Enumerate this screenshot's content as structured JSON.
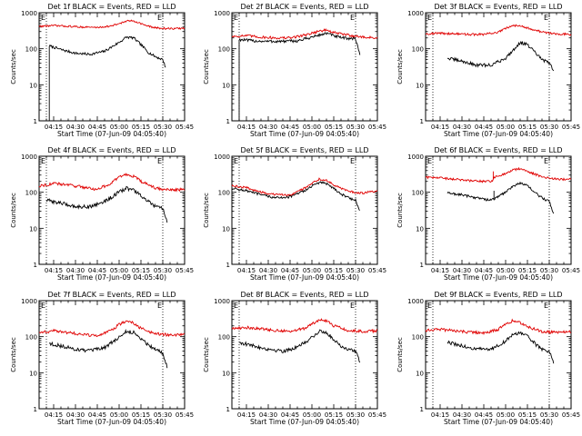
{
  "colors": {
    "events": "#000000",
    "lld": "#e00000",
    "axis": "#000000"
  },
  "chart_data": [
    {
      "type": "line",
      "title": "Det 1f BLACK = Events, RED = LLD",
      "xlabel": "Start Time (07-Jun-09 04:05:40)",
      "ylabel": "Counts/sec",
      "yscale": "log",
      "ylim": [
        1,
        1000
      ],
      "ytick_labels": [
        "1",
        "10",
        "100",
        "1000"
      ],
      "x_range_min": [
        0,
        100
      ],
      "xtick_min": [
        10,
        25,
        40,
        55,
        70,
        85,
        100
      ],
      "xtick_labels": [
        "04:15",
        "04:30",
        "04:45",
        "05:00",
        "05:15",
        "05:30",
        "05:45"
      ],
      "markers": [
        {
          "x": 5,
          "label": "E"
        },
        {
          "x": 85,
          "label": "E"
        }
      ],
      "series": [
        {
          "name": "Events",
          "color": "#000000",
          "start": 7,
          "end": 87,
          "x": [
            7,
            15,
            25,
            35,
            45,
            55,
            60,
            65,
            70,
            75,
            80,
            85,
            87
          ],
          "y": [
            120,
            95,
            75,
            70,
            85,
            150,
            210,
            200,
            130,
            80,
            60,
            50,
            30
          ],
          "drop": 1,
          "noise": 0.035
        },
        {
          "name": "LLD",
          "color": "#e00000",
          "start": 0,
          "end": 100,
          "x": [
            0,
            10,
            20,
            30,
            40,
            50,
            55,
            60,
            65,
            70,
            75,
            80,
            90,
            100
          ],
          "y": [
            420,
            440,
            420,
            400,
            390,
            430,
            500,
            580,
            600,
            500,
            420,
            380,
            360,
            370
          ],
          "noise": 0.025
        }
      ]
    },
    {
      "type": "line",
      "title": "Det 2f BLACK = Events, RED = LLD",
      "xlabel": "Start Time (07-Jun-09 04:05:40)",
      "ylabel": "Counts/sec",
      "yscale": "log",
      "ylim": [
        1,
        1000
      ],
      "ytick_labels": [
        "1",
        "10",
        "100",
        "1000"
      ],
      "x_range_min": [
        0,
        100
      ],
      "xtick_min": [
        10,
        25,
        40,
        55,
        70,
        85,
        100
      ],
      "xtick_labels": [
        "04:15",
        "04:30",
        "04:45",
        "05:00",
        "05:15",
        "05:30",
        "05:45"
      ],
      "markers": [
        {
          "x": 5,
          "label": "E"
        },
        {
          "x": 85,
          "label": "E"
        }
      ],
      "series": [
        {
          "name": "Events",
          "color": "#000000",
          "start": 5,
          "end": 88,
          "x": [
            5,
            15,
            25,
            35,
            45,
            55,
            65,
            70,
            75,
            80,
            85,
            88
          ],
          "y": [
            180,
            165,
            160,
            160,
            165,
            210,
            270,
            230,
            200,
            195,
            190,
            70
          ],
          "drop": 1,
          "noise": 0.04
        },
        {
          "name": "LLD",
          "color": "#e00000",
          "start": 0,
          "end": 100,
          "x": [
            0,
            10,
            20,
            30,
            40,
            50,
            60,
            65,
            70,
            80,
            90,
            100
          ],
          "y": [
            220,
            230,
            210,
            200,
            200,
            240,
            310,
            330,
            280,
            240,
            210,
            200
          ],
          "noise": 0.035
        }
      ]
    },
    {
      "type": "line",
      "title": "Det 3f BLACK = Events, RED = LLD",
      "xlabel": "Start Time (07-Jun-09 04:05:40)",
      "ylabel": "Counts/sec",
      "yscale": "log",
      "ylim": [
        1,
        1000
      ],
      "ytick_labels": [
        "1",
        "10",
        "100",
        "1000"
      ],
      "x_range_min": [
        0,
        100
      ],
      "xtick_min": [
        10,
        25,
        40,
        55,
        70,
        85,
        100
      ],
      "xtick_labels": [
        "04:15",
        "04:30",
        "04:45",
        "05:00",
        "05:15",
        "05:30",
        "05:45"
      ],
      "markers": [
        {
          "x": 5,
          "label": "E"
        },
        {
          "x": 85,
          "label": "E"
        }
      ],
      "series": [
        {
          "name": "Events",
          "color": "#000000",
          "start": 15,
          "end": 88,
          "x": [
            15,
            25,
            35,
            45,
            55,
            60,
            65,
            70,
            75,
            80,
            85,
            88
          ],
          "y": [
            55,
            45,
            35,
            35,
            55,
            90,
            150,
            130,
            80,
            50,
            40,
            25
          ],
          "noise": 0.045
        },
        {
          "name": "LLD",
          "color": "#e00000",
          "start": 0,
          "end": 100,
          "x": [
            0,
            10,
            20,
            30,
            40,
            50,
            55,
            60,
            65,
            70,
            80,
            90,
            100
          ],
          "y": [
            260,
            270,
            260,
            250,
            250,
            290,
            360,
            440,
            450,
            380,
            290,
            260,
            250
          ],
          "noise": 0.03
        }
      ]
    },
    {
      "type": "line",
      "title": "Det 4f BLACK = Events, RED = LLD",
      "xlabel": "Start Time (07-Jun-09 04:05:40)",
      "ylabel": "Counts/sec",
      "yscale": "log",
      "ylim": [
        1,
        1000
      ],
      "ytick_labels": [
        "1",
        "10",
        "100",
        "1000"
      ],
      "x_range_min": [
        0,
        100
      ],
      "xtick_min": [
        10,
        25,
        40,
        55,
        70,
        85,
        100
      ],
      "xtick_labels": [
        "04:15",
        "04:30",
        "04:45",
        "05:00",
        "05:15",
        "05:30",
        "05:45"
      ],
      "markers": [
        {
          "x": 5,
          "label": "E"
        },
        {
          "x": 85,
          "label": "E"
        }
      ],
      "series": [
        {
          "name": "Events",
          "color": "#000000",
          "start": 5,
          "end": 88,
          "x": [
            5,
            15,
            25,
            35,
            45,
            55,
            60,
            65,
            70,
            75,
            80,
            85,
            88
          ],
          "y": [
            60,
            50,
            40,
            40,
            55,
            100,
            130,
            115,
            80,
            55,
            40,
            35,
            15
          ],
          "noise": 0.05
        },
        {
          "name": "LLD",
          "color": "#e00000",
          "start": 0,
          "end": 100,
          "x": [
            0,
            10,
            20,
            30,
            40,
            50,
            55,
            60,
            65,
            70,
            80,
            90,
            100
          ],
          "y": [
            150,
            175,
            160,
            140,
            120,
            180,
            270,
            310,
            280,
            200,
            130,
            115,
            120
          ],
          "noise": 0.04
        }
      ]
    },
    {
      "type": "line",
      "title": "Det 5f BLACK = Events, RED = LLD",
      "xlabel": "Start Time (07-Jun-09 04:05:40)",
      "ylabel": "Counts/sec",
      "yscale": "log",
      "ylim": [
        1,
        1000
      ],
      "ytick_labels": [
        "1",
        "10",
        "100",
        "1000"
      ],
      "x_range_min": [
        0,
        100
      ],
      "xtick_min": [
        10,
        25,
        40,
        55,
        70,
        85,
        100
      ],
      "xtick_labels": [
        "04:15",
        "04:30",
        "04:45",
        "05:00",
        "05:15",
        "05:30",
        "05:45"
      ],
      "markers": [
        {
          "x": 5,
          "label": "E"
        },
        {
          "x": 85,
          "label": "E"
        }
      ],
      "series": [
        {
          "name": "Events",
          "color": "#000000",
          "start": 0,
          "end": 88,
          "x": [
            0,
            10,
            20,
            30,
            40,
            50,
            55,
            60,
            65,
            70,
            75,
            80,
            85,
            88
          ],
          "y": [
            130,
            110,
            85,
            70,
            75,
            110,
            150,
            185,
            175,
            130,
            90,
            70,
            60,
            30
          ],
          "noise": 0.035
        },
        {
          "name": "LLD",
          "color": "#e00000",
          "start": 0,
          "end": 100,
          "x": [
            0,
            10,
            20,
            30,
            40,
            50,
            55,
            60,
            65,
            70,
            80,
            90,
            100
          ],
          "y": [
            150,
            135,
            100,
            85,
            85,
            130,
            180,
            230,
            220,
            160,
            105,
            95,
            110
          ],
          "noise": 0.03
        }
      ]
    },
    {
      "type": "line",
      "title": "Det 6f BLACK = Events, RED = LLD",
      "xlabel": "Start Time (07-Jun-09 04:05:40)",
      "ylabel": "Counts/sec",
      "yscale": "log",
      "ylim": [
        1,
        1000
      ],
      "ytick_labels": [
        "1",
        "10",
        "100",
        "1000"
      ],
      "x_range_min": [
        0,
        100
      ],
      "xtick_min": [
        10,
        25,
        40,
        55,
        70,
        85,
        100
      ],
      "xtick_labels": [
        "04:15",
        "04:30",
        "04:45",
        "05:00",
        "05:15",
        "05:30",
        "05:45"
      ],
      "markers": [
        {
          "x": 5,
          "label": "E"
        },
        {
          "x": 85,
          "label": "E"
        }
      ],
      "series": [
        {
          "name": "Events",
          "color": "#000000",
          "start": 15,
          "end": 88,
          "x": [
            15,
            25,
            35,
            45,
            47,
            55,
            60,
            65,
            70,
            75,
            80,
            85,
            88
          ],
          "y": [
            95,
            85,
            70,
            60,
            65,
            100,
            150,
            180,
            150,
            100,
            70,
            55,
            25
          ],
          "spike": {
            "x": 47,
            "y": 110
          },
          "noise": 0.035
        },
        {
          "name": "LLD",
          "color": "#e00000",
          "start": 0,
          "end": 100,
          "x": [
            0,
            10,
            20,
            30,
            40,
            46,
            47,
            55,
            60,
            65,
            70,
            80,
            90,
            100
          ],
          "y": [
            260,
            250,
            230,
            210,
            200,
            200,
            260,
            330,
            420,
            450,
            380,
            270,
            230,
            230
          ],
          "spike": {
            "x": 46.5,
            "y": 380
          },
          "noise": 0.03
        }
      ]
    },
    {
      "type": "line",
      "title": "Det 7f BLACK = Events, RED = LLD",
      "xlabel": "Start Time (07-Jun-09 04:05:40)",
      "ylabel": "Counts/sec",
      "yscale": "log",
      "ylim": [
        1,
        1000
      ],
      "ytick_labels": [
        "1",
        "10",
        "100",
        "1000"
      ],
      "x_range_min": [
        0,
        100
      ],
      "xtick_min": [
        10,
        25,
        40,
        55,
        70,
        85,
        100
      ],
      "xtick_labels": [
        "04:15",
        "04:30",
        "04:45",
        "05:00",
        "05:15",
        "05:30",
        "05:45"
      ],
      "markers": [
        {
          "x": 5,
          "label": "E"
        },
        {
          "x": 85,
          "label": "E"
        }
      ],
      "series": [
        {
          "name": "Events",
          "color": "#000000",
          "start": 7,
          "end": 88,
          "x": [
            7,
            15,
            25,
            35,
            45,
            55,
            60,
            65,
            70,
            75,
            80,
            85,
            88
          ],
          "y": [
            65,
            55,
            45,
            40,
            50,
            95,
            140,
            130,
            90,
            60,
            45,
            35,
            15
          ],
          "noise": 0.05
        },
        {
          "name": "LLD",
          "color": "#e00000",
          "start": 0,
          "end": 100,
          "x": [
            0,
            10,
            20,
            30,
            40,
            50,
            55,
            60,
            65,
            70,
            80,
            90,
            100
          ],
          "y": [
            130,
            145,
            130,
            115,
            105,
            150,
            220,
            270,
            240,
            170,
            120,
            110,
            115
          ],
          "noise": 0.04
        }
      ]
    },
    {
      "type": "line",
      "title": "Det 8f BLACK = Events, RED = LLD",
      "xlabel": "Start Time (07-Jun-09 04:05:40)",
      "ylabel": "Counts/sec",
      "yscale": "log",
      "ylim": [
        1,
        1000
      ],
      "ytick_labels": [
        "1",
        "10",
        "100",
        "1000"
      ],
      "x_range_min": [
        0,
        100
      ],
      "xtick_min": [
        10,
        25,
        40,
        55,
        70,
        85,
        100
      ],
      "xtick_labels": [
        "04:15",
        "04:30",
        "04:45",
        "05:00",
        "05:15",
        "05:30",
        "05:45"
      ],
      "markers": [
        {
          "x": 5,
          "label": "E"
        },
        {
          "x": 85,
          "label": "E"
        }
      ],
      "series": [
        {
          "name": "Events",
          "color": "#000000",
          "start": 5,
          "end": 88,
          "x": [
            5,
            15,
            25,
            35,
            45,
            55,
            60,
            65,
            70,
            75,
            80,
            85,
            88
          ],
          "y": [
            70,
            55,
            45,
            40,
            50,
            95,
            140,
            130,
            85,
            55,
            45,
            40,
            20
          ],
          "noise": 0.05
        },
        {
          "name": "LLD",
          "color": "#e00000",
          "start": 0,
          "end": 100,
          "x": [
            0,
            10,
            20,
            30,
            40,
            50,
            55,
            60,
            65,
            70,
            80,
            90,
            100
          ],
          "y": [
            170,
            180,
            165,
            150,
            140,
            170,
            230,
            290,
            270,
            200,
            150,
            140,
            145
          ],
          "noise": 0.04
        }
      ]
    },
    {
      "type": "line",
      "title": "Det 9f BLACK = Events, RED = LLD",
      "xlabel": "Start Time (07-Jun-09 04:05:40)",
      "ylabel": "Counts/sec",
      "yscale": "log",
      "ylim": [
        1,
        1000
      ],
      "ytick_labels": [
        "1",
        "10",
        "100",
        "1000"
      ],
      "x_range_min": [
        0,
        100
      ],
      "xtick_min": [
        10,
        25,
        40,
        55,
        70,
        85,
        100
      ],
      "xtick_labels": [
        "04:15",
        "04:30",
        "04:45",
        "05:00",
        "05:15",
        "05:30",
        "05:45"
      ],
      "markers": [
        {
          "x": 5,
          "label": "E"
        },
        {
          "x": 85,
          "label": "E"
        }
      ],
      "series": [
        {
          "name": "Events",
          "color": "#000000",
          "start": 15,
          "end": 88,
          "x": [
            15,
            25,
            35,
            45,
            55,
            60,
            65,
            70,
            75,
            80,
            85,
            88
          ],
          "y": [
            70,
            55,
            45,
            45,
            75,
            115,
            130,
            100,
            65,
            45,
            40,
            20
          ],
          "noise": 0.05
        },
        {
          "name": "LLD",
          "color": "#e00000",
          "start": 0,
          "end": 100,
          "x": [
            0,
            10,
            20,
            30,
            40,
            50,
            55,
            60,
            65,
            70,
            80,
            90,
            100
          ],
          "y": [
            150,
            160,
            145,
            135,
            125,
            160,
            220,
            280,
            250,
            190,
            140,
            130,
            140
          ],
          "noise": 0.04
        }
      ]
    }
  ]
}
